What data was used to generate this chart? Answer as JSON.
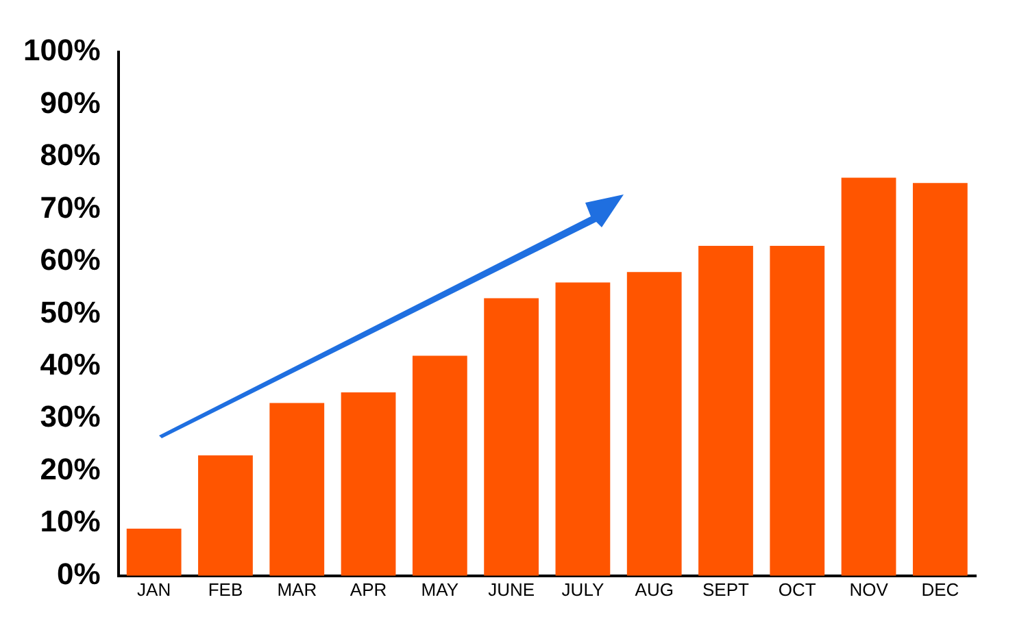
{
  "chart_data": {
    "type": "bar",
    "categories": [
      "JAN",
      "FEB",
      "MAR",
      "APR",
      "MAY",
      "JUNE",
      "JULY",
      "AUG",
      "SEPT",
      "OCT",
      "NOV",
      "DEC"
    ],
    "values": [
      9,
      23,
      33,
      35,
      42,
      53,
      56,
      58,
      63,
      63,
      76,
      75
    ],
    "color": "#ff5500",
    "ylim": [
      0,
      100
    ],
    "yticks": [
      {
        "value": 0,
        "label": "0%"
      },
      {
        "value": 10,
        "label": "10%"
      },
      {
        "value": 20,
        "label": "20%"
      },
      {
        "value": 30,
        "label": "30%"
      },
      {
        "value": 40,
        "label": "40%"
      },
      {
        "value": 50,
        "label": "50%"
      },
      {
        "value": 60,
        "label": "60%"
      },
      {
        "value": 70,
        "label": "70%"
      },
      {
        "value": 80,
        "label": "80%"
      },
      {
        "value": 90,
        "label": "90%"
      },
      {
        "value": 100,
        "label": "100%"
      }
    ],
    "grid": false,
    "legend": false
  }
}
